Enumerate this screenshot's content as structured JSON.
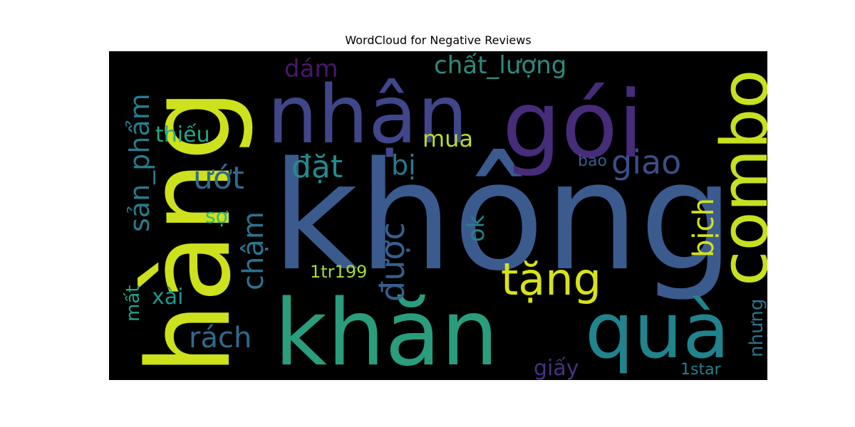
{
  "chart_data": {
    "type": "wordcloud",
    "title": "WordCloud for Negative Reviews",
    "background": "#000000",
    "colormap": "viridis",
    "words": [
      {
        "text": "không",
        "color": "#3b5b8f",
        "orient": "h"
      },
      {
        "text": "hàng",
        "color": "#cde11d",
        "orient": "v"
      },
      {
        "text": "nhận",
        "color": "#40468a",
        "orient": "h"
      },
      {
        "text": "gói",
        "color": "#472c7a",
        "orient": "h"
      },
      {
        "text": "khăn",
        "color": "#2a9d7d",
        "orient": "h"
      },
      {
        "text": "combo",
        "color": "#c7e020",
        "orient": "v"
      },
      {
        "text": "quà",
        "color": "#21838d",
        "orient": "h"
      },
      {
        "text": "tặng",
        "color": "#d8e219",
        "orient": "h"
      },
      {
        "text": "giao",
        "color": "#3c4d8a",
        "orient": "h"
      },
      {
        "text": "đặt",
        "color": "#238a8d",
        "orient": "h"
      },
      {
        "text": "chất_lượng",
        "color": "#2d8b7d",
        "orient": "h"
      },
      {
        "text": "sản_phẩm",
        "color": "#297b8e",
        "orient": "v"
      },
      {
        "text": "ướt",
        "color": "#2f6b8e",
        "orient": "h"
      },
      {
        "text": "được",
        "color": "#355f8d",
        "orient": "v"
      },
      {
        "text": "chậm",
        "color": "#2b748e",
        "orient": "v"
      },
      {
        "text": "bịch",
        "color": "#d2e21b",
        "orient": "v"
      },
      {
        "text": "bị",
        "color": "#2a788e",
        "orient": "h"
      },
      {
        "text": "rách",
        "color": "#2f6b8e",
        "orient": "h"
      },
      {
        "text": "mua",
        "color": "#b5de2b",
        "orient": "h"
      },
      {
        "text": "thiếu",
        "color": "#26a784",
        "orient": "h"
      },
      {
        "text": "dám",
        "color": "#48186a",
        "orient": "h"
      },
      {
        "text": "xài",
        "color": "#1f968b",
        "orient": "h"
      },
      {
        "text": "ok",
        "color": "#26818e",
        "orient": "v"
      },
      {
        "text": "giấy",
        "color": "#46327e",
        "orient": "h"
      },
      {
        "text": "mất",
        "color": "#20a386",
        "orient": "v"
      },
      {
        "text": "sợ",
        "color": "#35b779",
        "orient": "h"
      },
      {
        "text": "nhưng",
        "color": "#2c728e",
        "orient": "v"
      },
      {
        "text": "1tr199",
        "color": "#a2da37",
        "orient": "h"
      },
      {
        "text": "1star",
        "color": "#277f8e",
        "orient": "h"
      },
      {
        "text": "bao",
        "color": "#365c8d",
        "orient": "h"
      }
    ]
  }
}
